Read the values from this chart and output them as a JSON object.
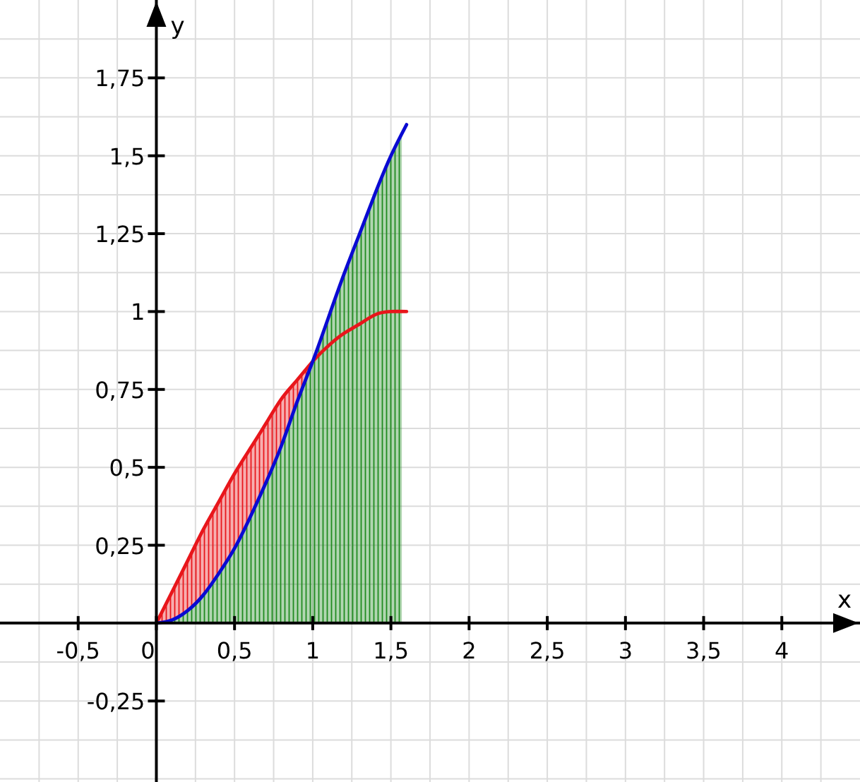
{
  "chart_data": {
    "type": "line",
    "xlabel": "x",
    "ylabel": "y",
    "xlim": [
      -1,
      4.5
    ],
    "ylim": [
      -0.51,
      2
    ],
    "xticks": [
      {
        "value": -0.75,
        "label": null
      },
      {
        "value": -0.5,
        "label": "-0,5"
      },
      {
        "value": -0.25,
        "label": null
      },
      0,
      {
        "value": 0.25,
        "label": null
      },
      {
        "value": 0.5,
        "label": "0,5"
      },
      {
        "value": 0.75,
        "label": null
      },
      1,
      {
        "value": 1.25,
        "label": null
      },
      {
        "value": 1.5,
        "label": "1,5"
      },
      {
        "value": 1.75,
        "label": null
      },
      2,
      {
        "value": 2.25,
        "label": null
      },
      {
        "value": 2.5,
        "label": "2,5"
      },
      {
        "value": 2.75,
        "label": null
      },
      3,
      {
        "value": 3.25,
        "label": null
      },
      {
        "value": 3.5,
        "label": "3,5"
      },
      {
        "value": 3.75,
        "label": null
      },
      4,
      {
        "value": 4.25,
        "label": null
      }
    ],
    "yticks": [
      {
        "value": -0.5,
        "label": null
      },
      {
        "value": -0.375,
        "label": null
      },
      {
        "value": -0.25,
        "label": "-0,25"
      },
      {
        "value": -0.125,
        "label": null
      },
      {
        "value": 0.125,
        "label": null
      },
      {
        "value": 0.25,
        "label": "0,25"
      },
      {
        "value": 0.375,
        "label": null
      },
      {
        "value": 0.5,
        "label": "0,5"
      },
      {
        "value": 0.625,
        "label": null
      },
      {
        "value": 0.75,
        "label": "0,75"
      },
      {
        "value": 0.875,
        "label": null
      },
      1,
      {
        "value": 1.125,
        "label": null
      },
      {
        "value": 1.25,
        "label": "1,25"
      },
      {
        "value": 1.375,
        "label": null
      },
      {
        "value": 1.5,
        "label": "1,5"
      },
      {
        "value": 1.625,
        "label": null
      },
      {
        "value": 1.75,
        "label": "1,75"
      },
      {
        "value": 1.875,
        "label": null
      }
    ],
    "grid": true,
    "series": [
      {
        "type": "area",
        "color": "#1f8a1f",
        "x": [
          0,
          0.1,
          0.2,
          0.3,
          0.4,
          0.5,
          0.6,
          0.7,
          0.8,
          0.9,
          1,
          1.1,
          1.2,
          1.3,
          1.4,
          1.5,
          1.57
        ],
        "values": [
          0,
          0.01,
          0.04,
          0.09,
          0.16,
          0.24,
          0.34,
          0.45,
          0.57,
          0.71,
          0.84,
          0.98,
          1.12,
          1.25,
          1.38,
          1.5,
          1.57
        ]
      },
      {
        "color": "#e8161b",
        "x": [
          0,
          0.1,
          0.2,
          0.3,
          0.4,
          0.5,
          0.6,
          0.7,
          0.8,
          0.9,
          1,
          1.1,
          1.2,
          1.3,
          1.4,
          1.5,
          1.6
        ],
        "values": [
          0,
          0.1,
          0.2,
          0.3,
          0.39,
          0.48,
          0.56,
          0.64,
          0.72,
          0.78,
          0.84,
          0.89,
          0.93,
          0.96,
          0.99,
          1,
          1
        ],
        "lower": [
          0,
          0.01,
          0.04,
          0.09,
          0.16,
          0.24,
          0.34,
          0.45,
          0.57,
          0.71,
          0.84,
          null,
          null,
          null,
          null,
          null,
          null
        ],
        "upper": [
          0,
          0.1,
          0.2,
          0.3,
          0.39,
          0.48,
          0.56,
          0.64,
          0.72,
          0.78,
          0.84,
          null,
          null,
          null,
          null,
          null,
          null
        ]
      },
      {
        "color": "#0a0ad2",
        "x": [
          0,
          0.1,
          0.2,
          0.3,
          0.4,
          0.5,
          0.6,
          0.7,
          0.8,
          0.9,
          1,
          1.1,
          1.2,
          1.3,
          1.4,
          1.5,
          1.6
        ],
        "values": [
          0,
          0.01,
          0.04,
          0.09,
          0.16,
          0.24,
          0.34,
          0.45,
          0.57,
          0.71,
          0.84,
          0.98,
          1.12,
          1.25,
          1.38,
          1.5,
          1.6
        ]
      }
    ]
  }
}
